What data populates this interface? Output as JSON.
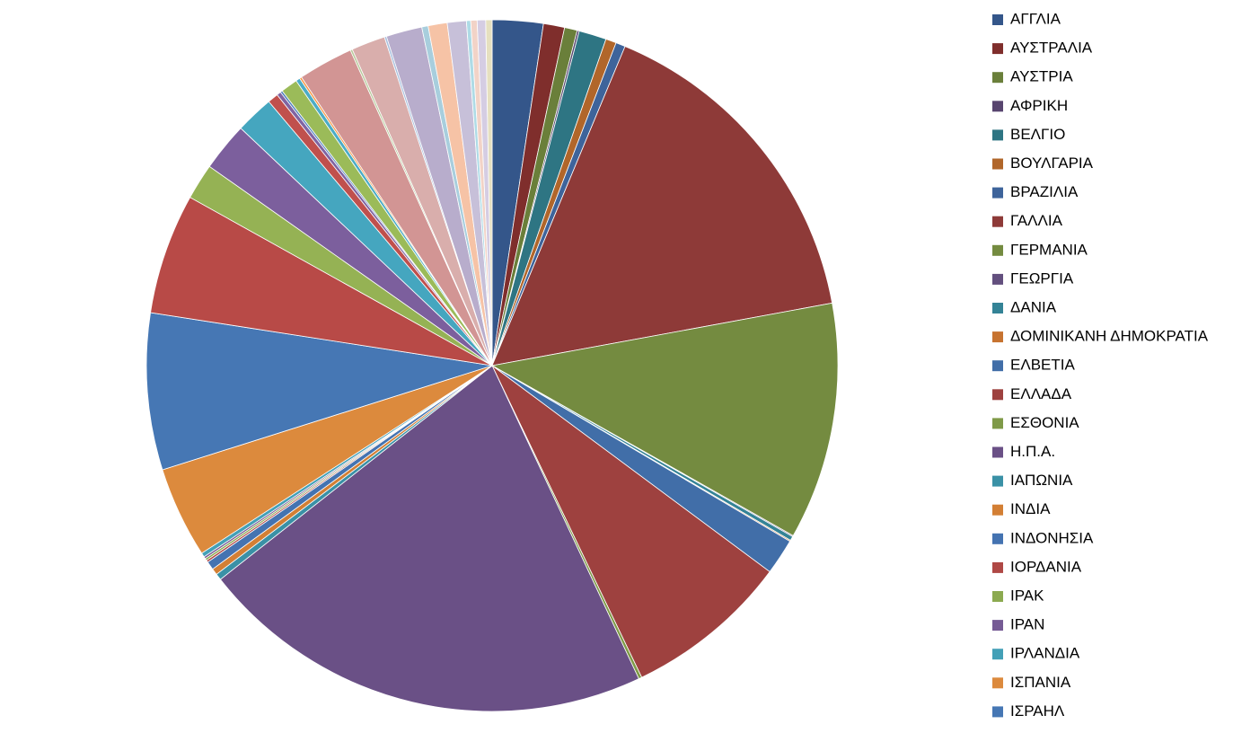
{
  "chart_data": {
    "type": "pie",
    "categories": [
      "ΑΓΓΛΙΑ",
      "ΑΥΣΤΡΑΛΙΑ",
      "ΑΥΣΤΡΙΑ",
      "ΑΦΡΙΚΗ",
      "ΒΕΛΓΙΟ",
      "ΒΟΥΛΓΑΡΙΑ",
      "ΒΡΑΖΙΛΙΑ",
      "ΓΑΛΛΙΑ",
      "ΓΕΡΜΑΝΙΑ",
      "ΓΕΩΡΓΙΑ",
      "ΔΑΝΙΑ",
      "ΔΟΜΙΝΙΚΑΝΗ ΔΗΜΟΚΡΑΤΙΑ",
      "ΕΛΒΕΤΙΑ",
      "ΕΛΛΑΔΑ",
      "ΕΣΘΟΝΙΑ",
      "Η.Π.Α.",
      "ΙΑΠΩΝΙΑ",
      "ΙΝΔΙΑ",
      "ΙΝΔΟΝΗΣΙΑ",
      "ΙΟΡΔΑΝΙΑ",
      "ΙΡΑΚ",
      "ΙΡΑΝ",
      "ΙΡΛΑΝΔΙΑ",
      "ΙΣΠΑΝΙΑ",
      "ΙΣΡΑΗΛ",
      null,
      null,
      null,
      null,
      null,
      null,
      null,
      null,
      null,
      null,
      null,
      null,
      null,
      null,
      null,
      null,
      null,
      null,
      null,
      null,
      null,
      null
    ],
    "values": [
      2.4,
      1.0,
      0.6,
      0.1,
      1.3,
      0.5,
      0.45,
      16,
      11.2,
      0.05,
      0.2,
      0.05,
      1.7,
      7.8,
      0.15,
      21.6,
      0.3,
      0.3,
      0.4,
      0.1,
      0.1,
      0.1,
      0.2,
      4.3,
      7.4,
      5.7,
      1.7,
      2.3,
      1.8,
      0.5,
      0.2,
      0.1,
      0.8,
      0.2,
      0.1,
      2.6,
      0.1,
      1.6,
      0.1,
      1.7,
      0.3,
      0.9,
      0.9,
      0.2,
      0.3,
      0.4,
      0.3
    ],
    "colors": [
      "#34568a",
      "#7f2e2c",
      "#6a7f3a",
      "#58456f",
      "#2e7583",
      "#b1662a",
      "#3e649b",
      "#8e3a38",
      "#748b40",
      "#634f7e",
      "#348396",
      "#c77330",
      "#416ea8",
      "#9e413f",
      "#7f9a48",
      "#6a5086",
      "#3a91a6",
      "#d37f34",
      "#4473b1",
      "#af4845",
      "#8caa50",
      "#765b95",
      "#43a0b7",
      "#dc8a3d",
      "#4677b4",
      "#b84a47",
      "#95b254",
      "#7c5f9d",
      "#45a6bf",
      "#c0504d",
      "#8064a2",
      "#4f81bd",
      "#9bbb59",
      "#4bacc6",
      "#f79646",
      "#d29594",
      "#b7c99a",
      "#d9aeac",
      "#a7c0de",
      "#b8adcc",
      "#a8cedd",
      "#f6c3a6",
      "#c7c0d9",
      "#aedbe6",
      "#f2d3c7",
      "#d5cde3",
      "#e6e0c0"
    ]
  }
}
